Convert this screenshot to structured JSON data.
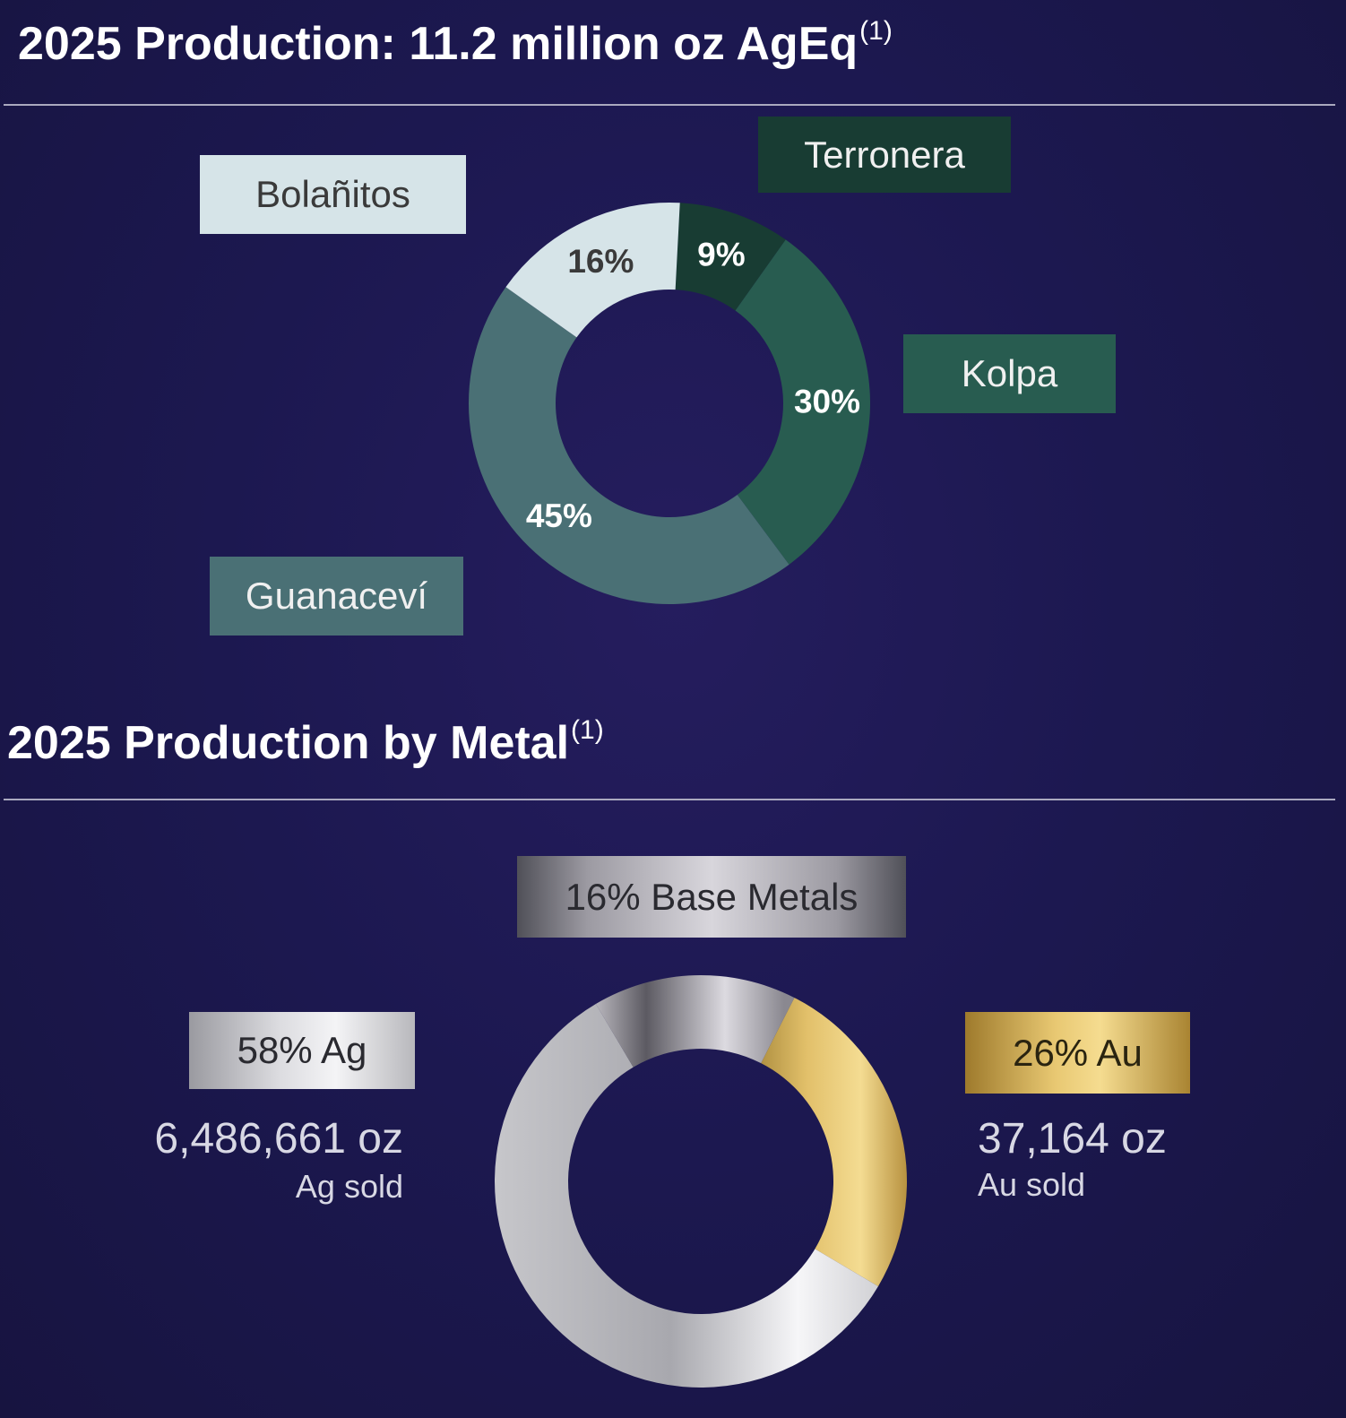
{
  "section1": {
    "title": "2025 Production: 11.2 million oz AgEq",
    "footnote": "(1)"
  },
  "section2": {
    "title": "2025 Production by Metal",
    "footnote": "(1)"
  },
  "chart_data": [
    {
      "type": "pie",
      "variant": "donut",
      "title": "2025 Production: 11.2 million oz AgEq",
      "unit": "%",
      "slices": [
        {
          "label": "Terronera",
          "value": 9,
          "value_label": "9%",
          "color": "#183c33",
          "text_color": "#ffffff"
        },
        {
          "label": "Kolpa",
          "value": 30,
          "value_label": "30%",
          "color": "#285c50",
          "text_color": "#ffffff"
        },
        {
          "label": "Guanaceví",
          "value": 45,
          "value_label": "45%",
          "color": "#4a7075",
          "text_color": "#ffffff"
        },
        {
          "label": "Bolañitos",
          "value": 16,
          "value_label": "16%",
          "color": "#d6e4e8",
          "text_color": "#3a3a3a"
        }
      ]
    },
    {
      "type": "pie",
      "variant": "donut",
      "title": "2025 Production by Metal",
      "unit": "%",
      "slices": [
        {
          "label": "Au",
          "legend": "26% Au",
          "value": 26,
          "color": "#e2c06a",
          "stat_value": "37,164 oz",
          "stat_caption": "Au sold"
        },
        {
          "label": "Ag",
          "legend": "58% Ag",
          "value": 58,
          "color": "#c8c8cc",
          "stat_value": "6,486,661 oz",
          "stat_caption": "Ag sold"
        },
        {
          "label": "Base Metals",
          "legend": "16% Base Metals",
          "value": 16,
          "color": "#8a8890"
        }
      ]
    }
  ]
}
